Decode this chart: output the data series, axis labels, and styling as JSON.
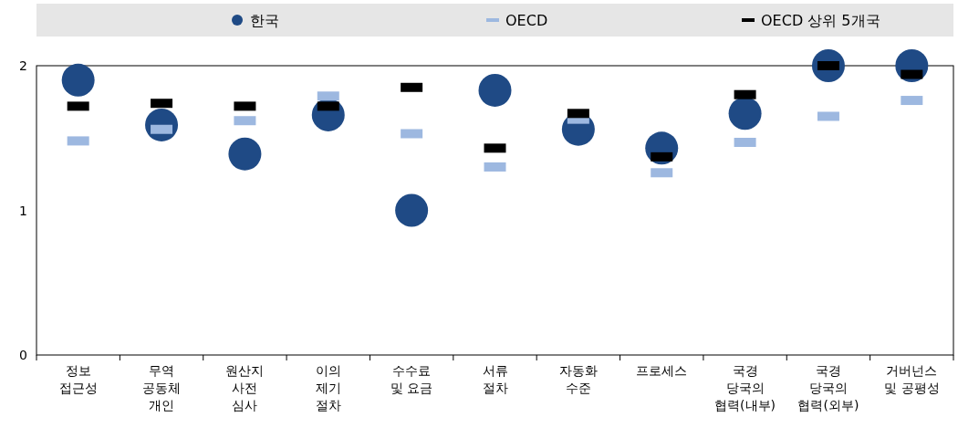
{
  "chart_data": {
    "type": "scatter",
    "categories": [
      "정보\n접근성",
      "무역\n공동체\n개인",
      "원산지\n사전\n심사",
      "이의\n제기\n절차",
      "수수료\n및 요금",
      "서류\n절차",
      "자동화\n수준",
      "프로세스",
      "국경\n당국의\n협력(내부)",
      "국경\n당국의\n협력(외부)",
      "거버넌스\n및 공평성"
    ],
    "series": [
      {
        "name": "한국",
        "color": "#1f4a85",
        "marker": "circle",
        "values": [
          1.9,
          1.59,
          1.39,
          1.66,
          1.0,
          1.83,
          1.56,
          1.43,
          1.67,
          2.0,
          2.0
        ]
      },
      {
        "name": "OECD",
        "color": "#9db8e0",
        "values": [
          1.48,
          1.56,
          1.62,
          1.79,
          1.53,
          1.3,
          1.63,
          1.26,
          1.47,
          1.65,
          1.76
        ]
      },
      {
        "name": "OECD 상위 5개국",
        "color": "#000000",
        "values": [
          1.72,
          1.74,
          1.72,
          1.72,
          1.85,
          1.43,
          1.67,
          1.37,
          1.8,
          2.0,
          1.94
        ]
      }
    ],
    "ylim": [
      0,
      2
    ],
    "yticks": [
      0,
      1,
      2
    ],
    "legend": "top",
    "grid": false
  }
}
